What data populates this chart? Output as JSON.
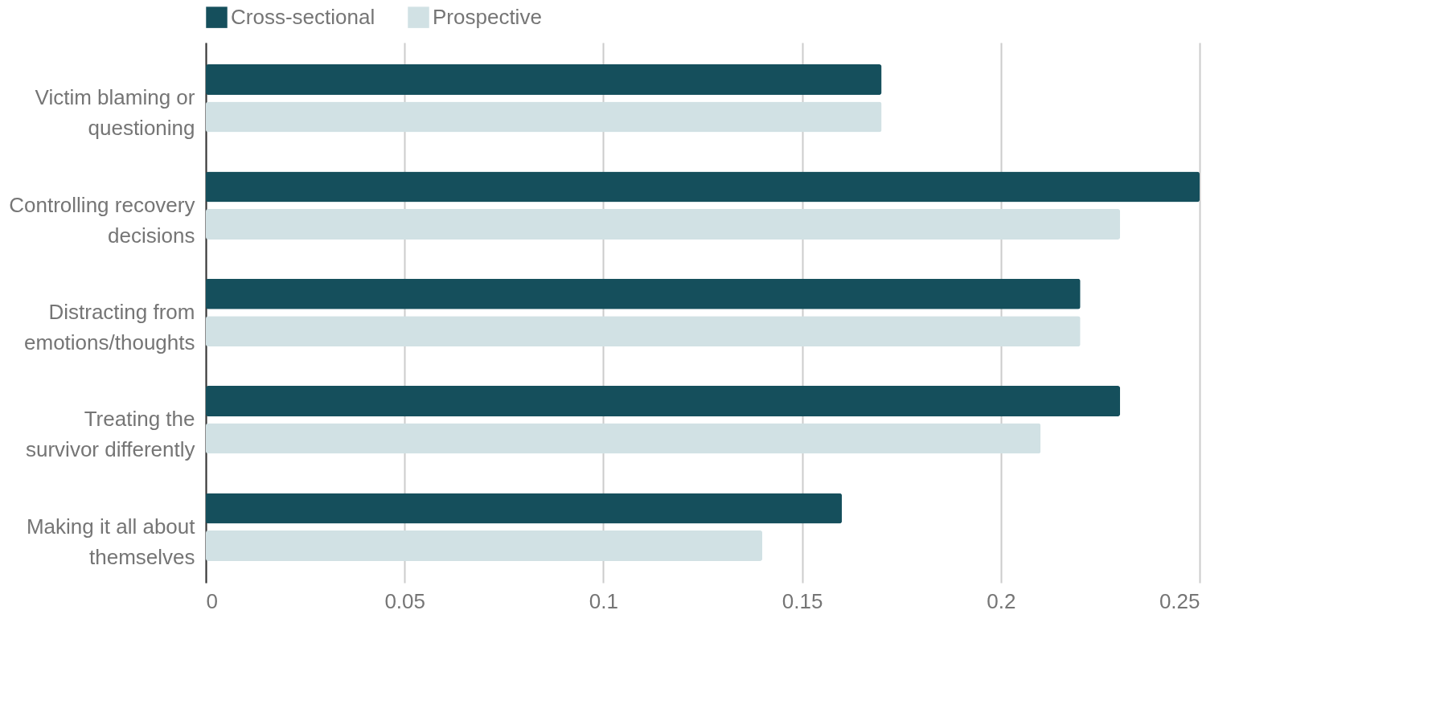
{
  "chart_data": {
    "type": "bar",
    "orientation": "horizontal",
    "categories": [
      "Victim blaming or questioning",
      "Controlling recovery decisions",
      "Distracting from emotions/thoughts",
      "Treating the survivor differently",
      "Making it all about themselves"
    ],
    "series": [
      {
        "name": "Cross-sectional",
        "color": "#154f5c",
        "values": [
          0.17,
          0.25,
          0.22,
          0.23,
          0.16
        ]
      },
      {
        "name": "Prospective",
        "color": "#d1e1e4",
        "values": [
          0.17,
          0.23,
          0.22,
          0.21,
          0.14
        ]
      }
    ],
    "xlim": [
      0,
      0.25
    ],
    "xticks": [
      0,
      0.05,
      0.1,
      0.15,
      0.2,
      0.25
    ],
    "grid": "x",
    "legend": "top"
  }
}
